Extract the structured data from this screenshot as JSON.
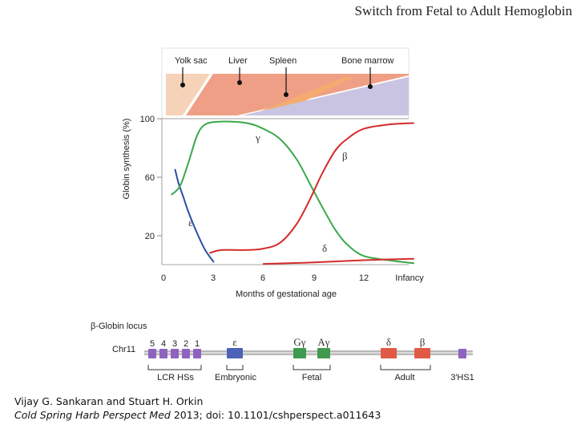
{
  "slide_title": "Switch from Fetal to Adult Hemoglobin",
  "organs": {
    "yolk_sac": "Yolk sac",
    "liver": "Liver",
    "spleen": "Spleen",
    "bone_marrow": "Bone marrow",
    "colors": {
      "yolk_sac": "#f6d3b8",
      "liver": "#ef9f86",
      "spleen": "#f3ab70",
      "bone_marrow": "#c9c4e1"
    }
  },
  "chart": {
    "ylabel": "Globin synthesis (%)",
    "xlabel": "Months of gestational age",
    "y_ticks": [
      "100",
      "60",
      "20"
    ],
    "x_ticks": [
      "0",
      "3",
      "6",
      "9",
      "12",
      "Infancy"
    ],
    "curve_labels": {
      "gamma": "γ",
      "beta": "β",
      "epsilon": "ε",
      "delta": "δ"
    }
  },
  "chart_data": {
    "type": "line",
    "xlabel": "Months of gestational age",
    "ylabel": "Globin synthesis (%)",
    "ylim": [
      0,
      100
    ],
    "xlim": [
      0,
      15
    ],
    "x_tick_labels": [
      "0",
      "3",
      "6",
      "9",
      "12",
      "Infancy"
    ],
    "y_tick_labels": [
      "100",
      "60",
      "20"
    ],
    "series": [
      {
        "name": "ε",
        "color": "#2b4fa3",
        "x": [
          0.7,
          0.9,
          1.2,
          1.5,
          2.0,
          2.5,
          3.0
        ],
        "y": [
          65,
          56,
          46,
          36,
          22,
          10,
          2
        ]
      },
      {
        "name": "γ",
        "color": "#3aa84a",
        "x": [
          0.5,
          1.0,
          1.5,
          2.0,
          2.5,
          3.5,
          5.0,
          6.0,
          7.0,
          8.0,
          8.8,
          9.5,
          10.3,
          11.0,
          12.0,
          13.5,
          15.0
        ],
        "y": [
          48,
          54,
          70,
          88,
          96,
          98,
          97,
          93,
          86,
          72,
          55,
          40,
          24,
          14,
          6,
          3,
          1
        ]
      },
      {
        "name": "β",
        "color": "#d42b2b",
        "x": [
          2.8,
          3.5,
          5.0,
          6.0,
          7.0,
          8.0,
          8.8,
          9.5,
          10.3,
          11.0,
          12.0,
          13.5,
          15.0
        ],
        "y": [
          8,
          10,
          10,
          11,
          15,
          28,
          45,
          62,
          78,
          86,
          93,
          96,
          97
        ]
      },
      {
        "name": "δ",
        "color": "#d42b2b",
        "x": [
          6.0,
          9.0,
          12.0,
          15.0
        ],
        "y": [
          0.5,
          1.5,
          3,
          4
        ]
      }
    ]
  },
  "locus": {
    "title": "β-Globin locus",
    "chromosome": "Chr11",
    "hs_numbers": [
      "5",
      "4",
      "3",
      "2",
      "1"
    ],
    "gene_labels": [
      "ε",
      "Gγ",
      "Aγ",
      "δ",
      "β"
    ],
    "group_labels": [
      "LCR HSs",
      "Embryonic",
      "Fetal",
      "Adult",
      "3′HS1"
    ],
    "colors": {
      "lcr": "#8f62c0",
      "embryonic": "#4b62b8",
      "fetal": "#3f9a4f",
      "adult": "#e05a45",
      "hs3": "#8f62c0"
    }
  },
  "citation": {
    "authors": "Vijay G. Sankaran and Stuart H. Orkin",
    "journal": "Cold Spring Harb Perspect Med",
    "details": " 2013; doi: 10.1101/cshperspect.a011643"
  }
}
